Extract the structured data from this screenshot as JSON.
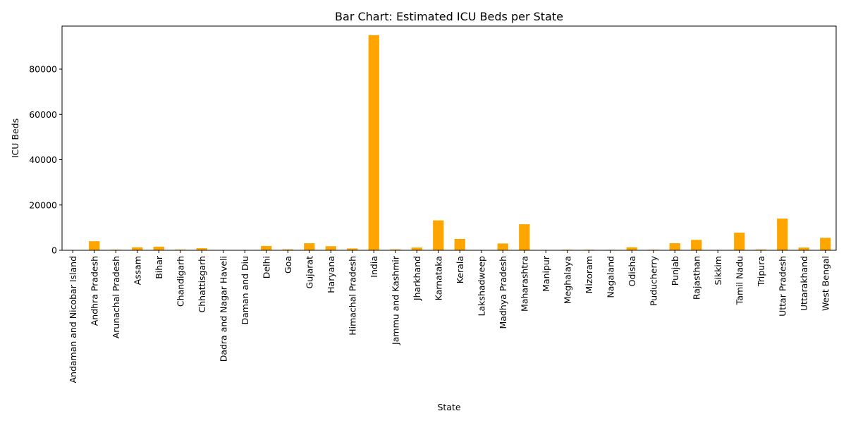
{
  "chart_data": {
    "type": "bar",
    "title": "Bar Chart: Estimated ICU Beds per State",
    "xlabel": "State",
    "ylabel": "ICU Beds",
    "ylim": [
      0,
      99000
    ],
    "yticks": [
      0,
      20000,
      40000,
      60000,
      80000
    ],
    "ytick_labels": [
      "0",
      "20000",
      "40000",
      "60000",
      "80000"
    ],
    "bar_color": "#ffa500",
    "grid": false,
    "legend": "none",
    "categories": [
      "Andaman and Nicobar Island",
      "Andhra Pradesh",
      "Arunachal Pradesh",
      "Assam",
      "Bihar",
      "Chandigarh",
      "Chhattisgarh",
      "Dadra and Nagar Haveli",
      "Daman and Diu",
      "Delhi",
      "Goa",
      "Gujarat",
      "Haryana",
      "Himachal Pradesh",
      "India",
      "Jammu and Kashmir",
      "Jharkhand",
      "Karnataka",
      "Kerala",
      "Lakshadweep",
      "Madhya Pradesh",
      "Maharashtra",
      "Manipur",
      "Meghalaya",
      "Mizoram",
      "Nagaland",
      "Odisha",
      "Puducherry",
      "Punjab",
      "Rajasthan",
      "Sikkim",
      "Tamil Nadu",
      "Tripura",
      "Uttar Pradesh",
      "Uttarakhand",
      "West Bengal"
    ],
    "values": [
      60,
      4000,
      250,
      1300,
      1600,
      300,
      900,
      50,
      60,
      1900,
      400,
      3100,
      1800,
      800,
      95000,
      400,
      1200,
      13200,
      5000,
      20,
      3000,
      11500,
      100,
      250,
      250,
      200,
      1300,
      250,
      3100,
      4600,
      50,
      7800,
      350,
      14000,
      1200,
      5500
    ]
  }
}
